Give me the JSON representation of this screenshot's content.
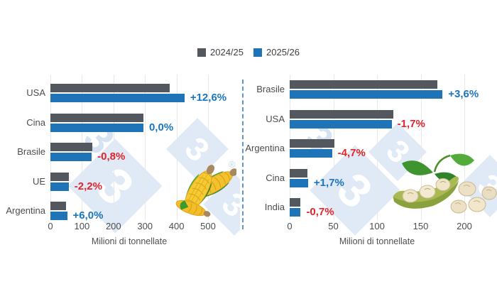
{
  "legend": {
    "items": [
      {
        "label": "2024/25",
        "color": "#53575e"
      },
      {
        "label": "2025/26",
        "color": "#1f74b8"
      }
    ]
  },
  "watermark": {
    "digit": "3",
    "registered": "®"
  },
  "colors": {
    "bar_2024_25": "#53575e",
    "bar_2025_26": "#1f74b8",
    "delta_positive": "#1b75bc",
    "delta_negative": "#e3242b",
    "watermark_blue": "#dfeaf6",
    "gridline": "#e8e8e8",
    "divider_blue": "#4285c5"
  },
  "chart_data": [
    {
      "type": "bar",
      "orientation": "horizontal",
      "topic": "corn-production",
      "illustration": "corn-cobs-icon",
      "categories": [
        "USA",
        "Cina",
        "Brasile",
        "UE",
        "Argentina"
      ],
      "series": [
        {
          "name": "2024/25",
          "values": [
            377.6,
            295,
            132,
            59.3,
            50
          ]
        },
        {
          "name": "2025/26",
          "values": [
            425.3,
            295,
            131,
            58,
            53
          ]
        }
      ],
      "deltas": [
        "+12,6%",
        "0,0%",
        "-0,8%",
        "-2,2%",
        "+6,0%"
      ],
      "xlabel": "Milioni di tonnellate",
      "xticks": [
        0,
        100,
        200,
        300,
        400,
        500
      ],
      "xlim": [
        0,
        560
      ],
      "grid": "vertical",
      "legend_position": "top-center"
    },
    {
      "type": "bar",
      "orientation": "horizontal",
      "topic": "soybean-production",
      "illustration": "soybean-pod-icon",
      "categories": [
        "Brasile",
        "USA",
        "Argentina",
        "Cina",
        "India"
      ],
      "series": [
        {
          "name": "2024/25",
          "values": [
            169,
            118.8,
            50.9,
            20.7,
            12.6
          ]
        },
        {
          "name": "2025/26",
          "values": [
            175,
            116.8,
            48.5,
            21.05,
            12.51
          ]
        }
      ],
      "deltas": [
        "+3,6%",
        "-1,7%",
        "-4,7%",
        "+1,7%",
        "-0,7%"
      ],
      "xlabel": "Milioni di tonnellate",
      "xticks": [
        0,
        50,
        100,
        150,
        200
      ],
      "xlim": [
        0,
        235
      ],
      "grid": "vertical",
      "legend_position": "top-center"
    }
  ]
}
